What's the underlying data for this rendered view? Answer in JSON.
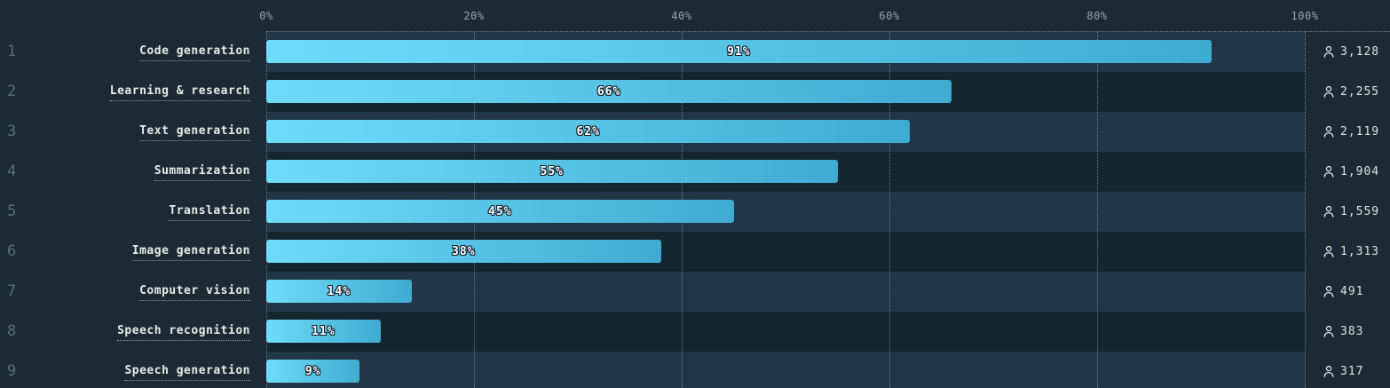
{
  "chart_data": {
    "type": "bar",
    "orientation": "horizontal",
    "categories": [
      "Code generation",
      "Learning & research",
      "Text generation",
      "Summarization",
      "Translation",
      "Image generation",
      "Computer vision",
      "Speech recognition",
      "Speech generation"
    ],
    "ranks": [
      "1",
      "2",
      "3",
      "4",
      "5",
      "6",
      "7",
      "8",
      "9"
    ],
    "series": [
      {
        "name": "share-of-users",
        "unit": "%",
        "values": [
          91,
          66,
          62,
          55,
          45,
          38,
          14,
          11,
          9
        ]
      },
      {
        "name": "respondent-count",
        "values": [
          "3,128",
          "2,255",
          "2,119",
          "1,904",
          "1,559",
          "1,313",
          "491",
          "383",
          "317"
        ]
      }
    ],
    "percent_labels": [
      "91%",
      "66%",
      "62%",
      "55%",
      "45%",
      "38%",
      "14%",
      "11%",
      "9%"
    ],
    "x_axis": {
      "position": "top",
      "ticks": [
        "0%",
        "20%",
        "40%",
        "60%",
        "80%",
        "100%"
      ],
      "tick_values": [
        0,
        20,
        40,
        60,
        80,
        100
      ],
      "min": 0,
      "max": 100,
      "grid": "dotted"
    },
    "legend": "none",
    "title": ""
  },
  "icons": {
    "respondents": "person-outline-icon"
  },
  "colors": {
    "background": "#1b2a34",
    "row_stripe_light": "#223645",
    "row_stripe_dark": "#162630",
    "bar_gradient_start": "#6edcf9",
    "bar_gradient_end": "#3fabd1",
    "tick_text": "#96a4ad",
    "rank_text": "#5d6e78",
    "category_text": "#e8ebe5",
    "count_text": "#dce3e0",
    "percent_text": "#ffffff"
  }
}
